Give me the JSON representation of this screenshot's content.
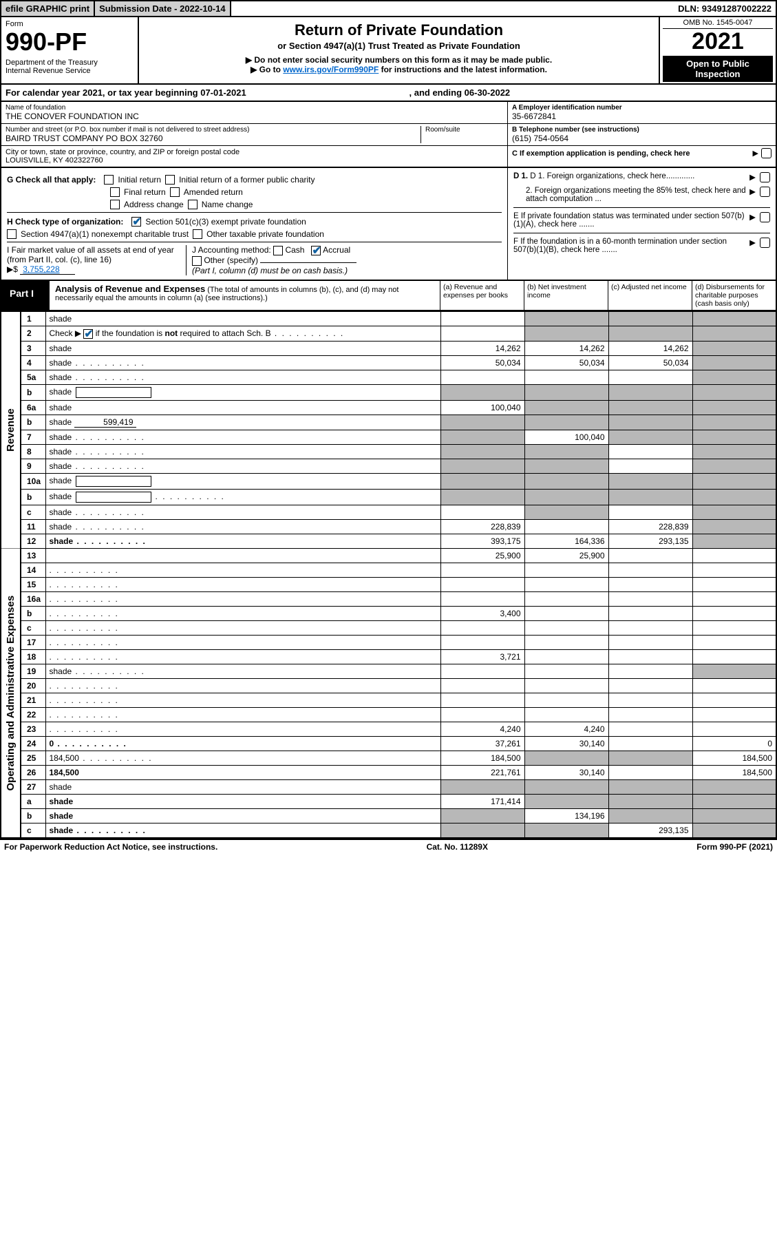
{
  "colors": {
    "black": "#000000",
    "white": "#ffffff",
    "gray_btn": "#d0d0d0",
    "gray_shade": "#b8b8b8",
    "link": "#0066cc",
    "check": "#1060a0"
  },
  "topbar": {
    "efile": "efile GRAPHIC print",
    "submission": "Submission Date - 2022-10-14",
    "dln": "DLN: 93491287002222"
  },
  "header": {
    "form_label": "Form",
    "form_no": "990-PF",
    "dept1": "Department of the Treasury",
    "dept2": "Internal Revenue Service",
    "title": "Return of Private Foundation",
    "subtitle": "or Section 4947(a)(1) Trust Treated as Private Foundation",
    "note1": "▶ Do not enter social security numbers on this form as it may be made public.",
    "note2_pre": "▶ Go to ",
    "note2_link": "www.irs.gov/Form990PF",
    "note2_post": " for instructions and the latest information.",
    "omb": "OMB No. 1545-0047",
    "tax_year": "2021",
    "open1": "Open to Public",
    "open2": "Inspection"
  },
  "cal_year": {
    "left": "For calendar year 2021, or tax year beginning 07-01-2021",
    "right": ", and ending 06-30-2022"
  },
  "info": {
    "name_lbl": "Name of foundation",
    "name_val": "THE CONOVER FOUNDATION INC",
    "addr_lbl": "Number and street (or P.O. box number if mail is not delivered to street address)",
    "room_lbl": "Room/suite",
    "addr_val": "BAIRD TRUST COMPANY PO BOX 32760",
    "city_lbl": "City or town, state or province, country, and ZIP or foreign postal code",
    "city_val": "LOUISVILLE, KY  402322760",
    "a_lbl": "A Employer identification number",
    "a_val": "35-6672841",
    "b_lbl": "B Telephone number (see instructions)",
    "b_val": "(615) 754-0564",
    "c_lbl": "C If exemption application is pending, check here"
  },
  "checks_left": {
    "g_lead": "G Check all that apply:",
    "g_opts": [
      "Initial return",
      "Initial return of a former public charity",
      "Final return",
      "Amended return",
      "Address change",
      "Name change"
    ],
    "h_lead": "H Check type of organization:",
    "h_opt1": "Section 501(c)(3) exempt private foundation",
    "h_opt2": "Section 4947(a)(1) nonexempt charitable trust",
    "h_opt3": "Other taxable private foundation",
    "i_lead": "I Fair market value of all assets at end of year (from Part II, col. (c), line 16)",
    "i_val": "3,755,228",
    "i_prefix": "▶$",
    "j_lead": "J Accounting method:",
    "j_cash": "Cash",
    "j_accrual": "Accrual",
    "j_other": "Other (specify)",
    "j_note": "(Part I, column (d) must be on cash basis.)"
  },
  "checks_right": {
    "d1": "D 1. Foreign organizations, check here.............",
    "d2": "2. Foreign organizations meeting the 85% test, check here and attach computation ...",
    "e": "E  If private foundation status was terminated under section 507(b)(1)(A), check here .......",
    "f": "F  If the foundation is in a 60-month termination under section 507(b)(1)(B), check here ......."
  },
  "part1": {
    "label": "Part I",
    "title": "Analysis of Revenue and Expenses",
    "title_note": " (The total of amounts in columns (b), (c), and (d) may not necessarily equal the amounts in column (a) (see instructions).)",
    "col_a": "(a)   Revenue and expenses per books",
    "col_b": "(b)   Net investment income",
    "col_c": "(c)   Adjusted net income",
    "col_d": "(d)   Disbursements for charitable purposes (cash basis only)"
  },
  "sections": {
    "revenue": "Revenue",
    "op_admin": "Operating and Administrative Expenses"
  },
  "lines": [
    {
      "n": "1",
      "d": "shade",
      "a": "",
      "b": "shade",
      "c": "shade"
    },
    {
      "n": "2",
      "d": "shade",
      "dots": true,
      "a": "",
      "b": "shade",
      "c": "shade",
      "boldnot": true
    },
    {
      "n": "3",
      "d": "shade",
      "a": "14,262",
      "b": "14,262",
      "c": "14,262"
    },
    {
      "n": "4",
      "d": "shade",
      "dots": true,
      "a": "50,034",
      "b": "50,034",
      "c": "50,034"
    },
    {
      "n": "5a",
      "d": "shade",
      "dots": true,
      "a": "",
      "b": "",
      "c": ""
    },
    {
      "n": "b",
      "d": "shade",
      "inlinebox": true,
      "a": "shade",
      "b": "shade",
      "c": "shade"
    },
    {
      "n": "6a",
      "d": "shade",
      "a": "100,040",
      "b": "shade",
      "c": "shade"
    },
    {
      "n": "b",
      "d": "shade",
      "inline_val": "599,419",
      "a": "shade",
      "b": "shade",
      "c": "shade"
    },
    {
      "n": "7",
      "d": "shade",
      "dots": true,
      "a": "shade",
      "b": "100,040",
      "c": "shade"
    },
    {
      "n": "8",
      "d": "shade",
      "dots": true,
      "a": "shade",
      "b": "shade",
      "c": ""
    },
    {
      "n": "9",
      "d": "shade",
      "dots": true,
      "a": "shade",
      "b": "shade",
      "c": ""
    },
    {
      "n": "10a",
      "d": "shade",
      "inlinebox": true,
      "a": "shade",
      "b": "shade",
      "c": "shade"
    },
    {
      "n": "b",
      "d": "shade",
      "dots": true,
      "inlinebox": true,
      "a": "shade",
      "b": "shade",
      "c": "shade"
    },
    {
      "n": "c",
      "d": "shade",
      "dots": true,
      "a": "",
      "b": "shade",
      "c": ""
    },
    {
      "n": "11",
      "d": "shade",
      "dots": true,
      "a": "228,839",
      "b": "",
      "c": "228,839"
    },
    {
      "n": "12",
      "d": "shade",
      "dots": true,
      "bold": true,
      "a": "393,175",
      "b": "164,336",
      "c": "293,135"
    }
  ],
  "op_lines": [
    {
      "n": "13",
      "d": "",
      "a": "25,900",
      "b": "25,900",
      "c": ""
    },
    {
      "n": "14",
      "d": "",
      "dots": true,
      "a": "",
      "b": "",
      "c": ""
    },
    {
      "n": "15",
      "d": "",
      "dots": true,
      "a": "",
      "b": "",
      "c": ""
    },
    {
      "n": "16a",
      "d": "",
      "dots": true,
      "a": "",
      "b": "",
      "c": ""
    },
    {
      "n": "b",
      "d": "",
      "dots": true,
      "a": "3,400",
      "b": "",
      "c": ""
    },
    {
      "n": "c",
      "d": "",
      "dots": true,
      "a": "",
      "b": "",
      "c": ""
    },
    {
      "n": "17",
      "d": "",
      "dots": true,
      "a": "",
      "b": "",
      "c": ""
    },
    {
      "n": "18",
      "d": "",
      "dots": true,
      "a": "3,721",
      "b": "",
      "c": ""
    },
    {
      "n": "19",
      "d": "shade",
      "dots": true,
      "a": "",
      "b": "",
      "c": ""
    },
    {
      "n": "20",
      "d": "",
      "dots": true,
      "a": "",
      "b": "",
      "c": ""
    },
    {
      "n": "21",
      "d": "",
      "dots": true,
      "a": "",
      "b": "",
      "c": ""
    },
    {
      "n": "22",
      "d": "",
      "dots": true,
      "a": "",
      "b": "",
      "c": ""
    },
    {
      "n": "23",
      "d": "",
      "dots": true,
      "a": "4,240",
      "b": "4,240",
      "c": ""
    },
    {
      "n": "24",
      "d": "0",
      "dots": true,
      "bold": true,
      "a": "37,261",
      "b": "30,140",
      "c": ""
    },
    {
      "n": "25",
      "d": "184,500",
      "dots": true,
      "a": "184,500",
      "b": "shade",
      "c": "shade"
    },
    {
      "n": "26",
      "d": "184,500",
      "bold": true,
      "a": "221,761",
      "b": "30,140",
      "c": ""
    },
    {
      "n": "27",
      "d": "shade",
      "a": "shade",
      "b": "shade",
      "c": "shade"
    },
    {
      "n": "a",
      "d": "shade",
      "bold": true,
      "a": "171,414",
      "b": "shade",
      "c": "shade"
    },
    {
      "n": "b",
      "d": "shade",
      "bold": true,
      "a": "shade",
      "b": "134,196",
      "c": "shade"
    },
    {
      "n": "c",
      "d": "shade",
      "dots": true,
      "bold": true,
      "a": "shade",
      "b": "shade",
      "c": "293,135"
    }
  ],
  "footer": {
    "left": "For Paperwork Reduction Act Notice, see instructions.",
    "mid": "Cat. No. 11289X",
    "right": "Form 990-PF (2021)"
  }
}
